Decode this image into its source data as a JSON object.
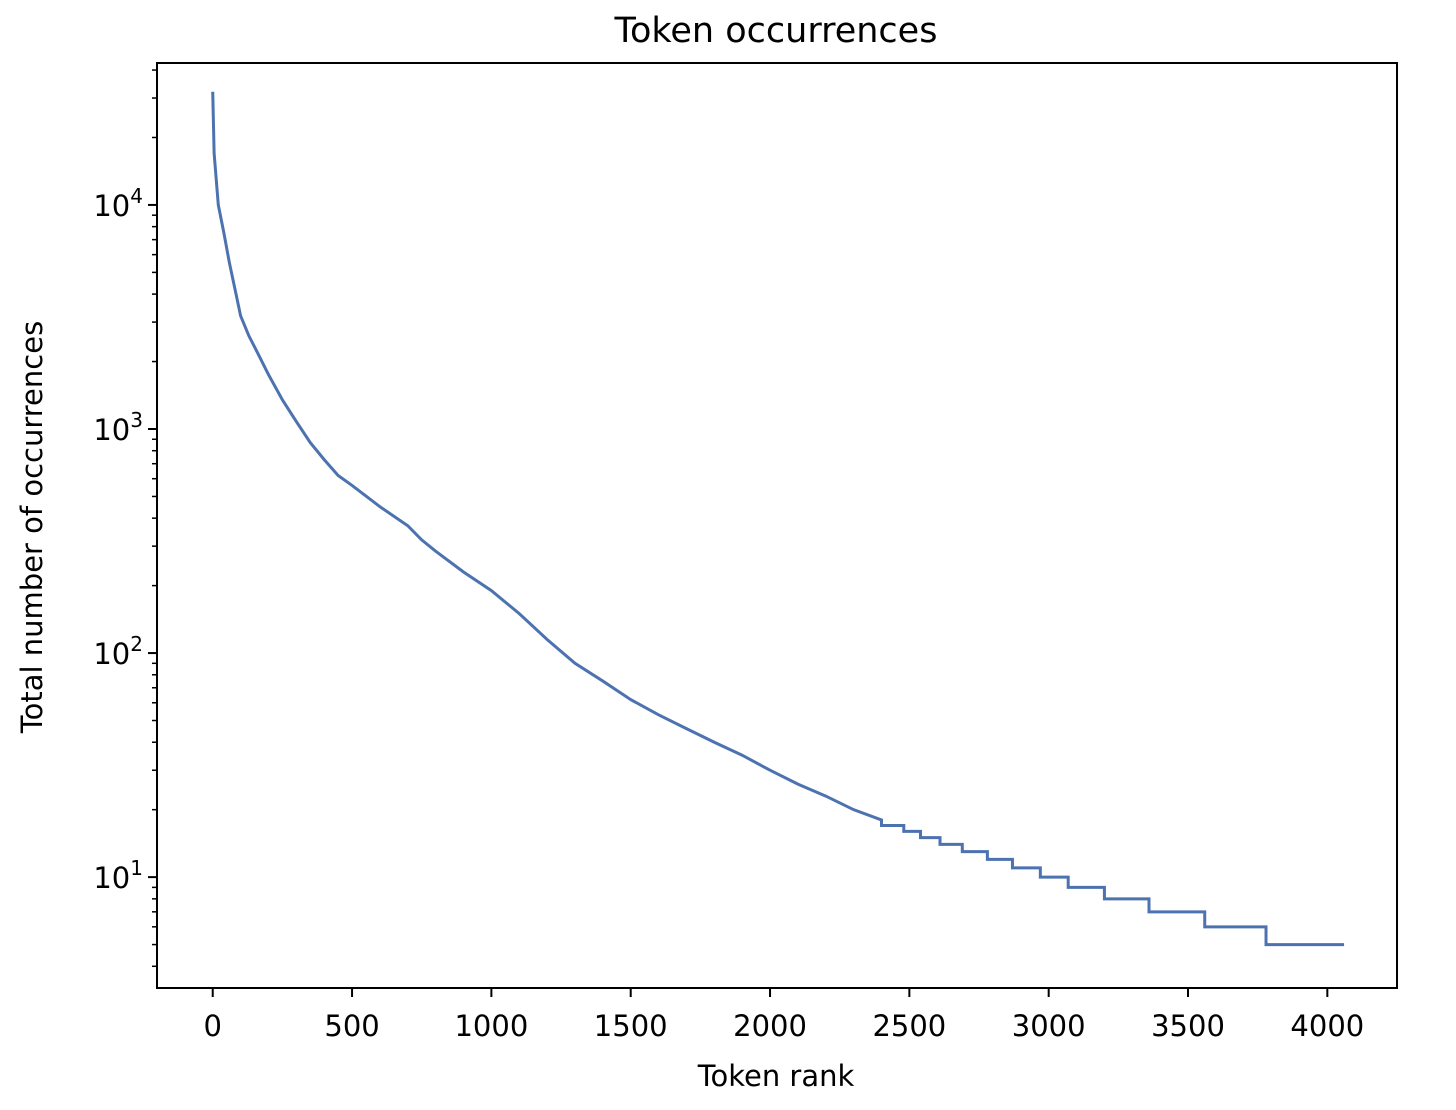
{
  "chart_data": {
    "type": "line",
    "title": "Token occurrences",
    "xlabel": "Token rank",
    "ylabel": "Total number of occurrences",
    "xscale": "linear",
    "yscale": "log",
    "xlim": [
      -200,
      4250
    ],
    "ylim": [
      3.2,
      43000
    ],
    "xticks": [
      0,
      500,
      1000,
      1500,
      2000,
      2500,
      3000,
      3500,
      4000
    ],
    "xtick_labels": [
      "0",
      "500",
      "1000",
      "1500",
      "2000",
      "2500",
      "3000",
      "3500",
      "4000"
    ],
    "yticks": [
      10,
      100,
      1000,
      10000
    ],
    "ytick_labels": [
      {
        "base": "10",
        "exp": "1"
      },
      {
        "base": "10",
        "exp": "2"
      },
      {
        "base": "10",
        "exp": "3"
      },
      {
        "base": "10",
        "exp": "4"
      }
    ],
    "grid": false,
    "line_color": "#4c72b0",
    "series": [
      {
        "x": [
          0,
          5,
          20,
          40,
          60,
          80,
          100,
          130,
          160,
          200,
          250,
          300,
          350,
          400,
          450,
          500,
          600,
          700,
          750,
          800,
          900,
          1000,
          1100,
          1200,
          1300,
          1400,
          1500,
          1600,
          1700,
          1800,
          1900,
          2000,
          2100,
          2200,
          2300,
          2400
        ],
        "y": [
          32000,
          17000,
          10000,
          7500,
          5500,
          4200,
          3200,
          2600,
          2200,
          1750,
          1350,
          1080,
          870,
          730,
          620,
          560,
          450,
          370,
          320,
          285,
          230,
          190,
          150,
          115,
          90,
          75,
          62,
          53,
          46,
          40,
          35,
          30,
          26,
          23,
          20,
          18
        ]
      }
    ],
    "steps": [
      {
        "y": 17,
        "x_start": 2400,
        "x_end": 2480
      },
      {
        "y": 16,
        "x_start": 2480,
        "x_end": 2540
      },
      {
        "y": 15,
        "x_start": 2540,
        "x_end": 2610
      },
      {
        "y": 14,
        "x_start": 2610,
        "x_end": 2690
      },
      {
        "y": 13,
        "x_start": 2690,
        "x_end": 2780
      },
      {
        "y": 12,
        "x_start": 2780,
        "x_end": 2870
      },
      {
        "y": 11,
        "x_start": 2870,
        "x_end": 2970
      },
      {
        "y": 10,
        "x_start": 2970,
        "x_end": 3070
      },
      {
        "y": 9,
        "x_start": 3070,
        "x_end": 3200
      },
      {
        "y": 8,
        "x_start": 3200,
        "x_end": 3360
      },
      {
        "y": 7,
        "x_start": 3360,
        "x_end": 3560
      },
      {
        "y": 6,
        "x_start": 3560,
        "x_end": 3780
      },
      {
        "y": 5,
        "x_start": 3780,
        "x_end": 4060
      }
    ]
  }
}
